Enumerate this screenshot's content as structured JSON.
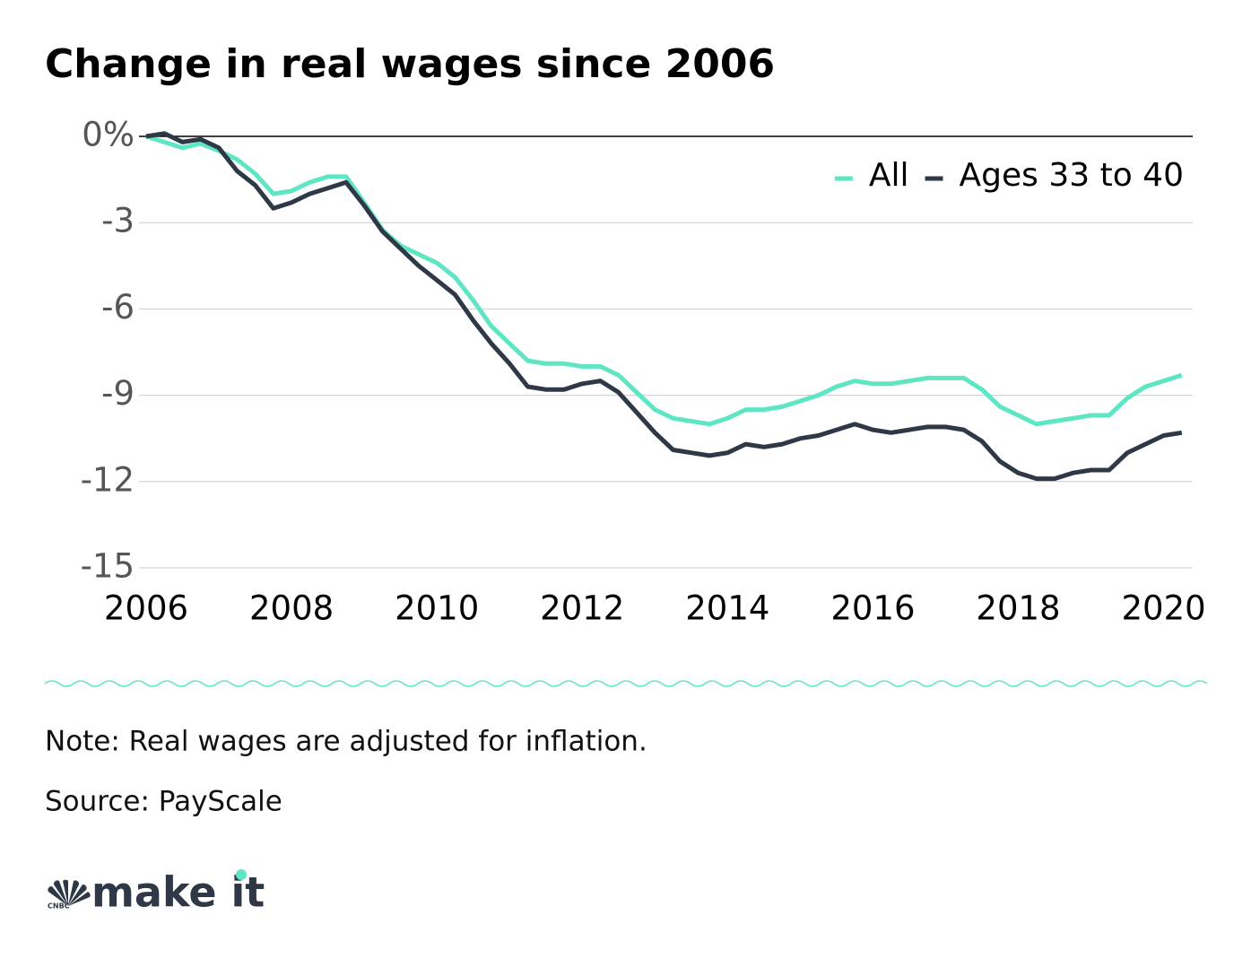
{
  "chart_data": {
    "type": "line",
    "title": "Change in real wages since 2006",
    "x": [
      2006,
      2006.25,
      2006.5,
      2006.75,
      2007,
      2007.25,
      2007.5,
      2007.75,
      2008,
      2008.25,
      2008.5,
      2008.75,
      2009,
      2009.25,
      2009.5,
      2009.75,
      2010,
      2010.25,
      2010.5,
      2010.75,
      2011,
      2011.25,
      2011.5,
      2011.75,
      2012,
      2012.25,
      2012.5,
      2012.75,
      2013,
      2013.25,
      2013.5,
      2013.75,
      2014,
      2014.25,
      2014.5,
      2014.75,
      2015,
      2015.25,
      2015.5,
      2015.75,
      2016,
      2016.25,
      2016.5,
      2016.75,
      2017,
      2017.25,
      2017.5,
      2017.75,
      2018,
      2018.25,
      2018.5,
      2018.75,
      2019,
      2019.25,
      2019.5,
      2019.75,
      2020,
      2020.25
    ],
    "series": [
      {
        "name": "All",
        "color": "#5ee6c4",
        "values": [
          0,
          -0.2,
          -0.4,
          -0.25,
          -0.5,
          -0.8,
          -1.3,
          -2.0,
          -1.9,
          -1.6,
          -1.4,
          -1.4,
          -2.3,
          -3.25,
          -3.8,
          -4.1,
          -4.4,
          -4.9,
          -5.7,
          -6.6,
          -7.2,
          -7.8,
          -7.9,
          -7.9,
          -8.0,
          -8.0,
          -8.3,
          -8.9,
          -9.5,
          -9.8,
          -9.9,
          -10.0,
          -9.8,
          -9.5,
          -9.5,
          -9.4,
          -9.2,
          -9.0,
          -8.7,
          -8.5,
          -8.6,
          -8.6,
          -8.5,
          -8.4,
          -8.4,
          -8.4,
          -8.8,
          -9.4,
          -9.7,
          -10.0,
          -9.9,
          -9.8,
          -9.7,
          -9.7,
          -9.1,
          -8.7,
          -8.5,
          -8.3
        ]
      },
      {
        "name": "Ages 33 to 40",
        "color": "#2f3846",
        "values": [
          0,
          0.1,
          -0.2,
          -0.1,
          -0.4,
          -1.2,
          -1.7,
          -2.5,
          -2.3,
          -2.0,
          -1.8,
          -1.6,
          -2.4,
          -3.3,
          -3.9,
          -4.5,
          -5.0,
          -5.5,
          -6.4,
          -7.2,
          -7.9,
          -8.7,
          -8.8,
          -8.8,
          -8.6,
          -8.5,
          -8.9,
          -9.6,
          -10.3,
          -10.9,
          -11.0,
          -11.1,
          -11.0,
          -10.7,
          -10.8,
          -10.7,
          -10.5,
          -10.4,
          -10.2,
          -10.0,
          -10.2,
          -10.3,
          -10.2,
          -10.1,
          -10.1,
          -10.2,
          -10.6,
          -11.3,
          -11.7,
          -11.9,
          -11.9,
          -11.7,
          -11.6,
          -11.6,
          -11.0,
          -10.7,
          -10.4,
          -10.3
        ]
      }
    ],
    "xlim": [
      2006,
      2020.4
    ],
    "xticks": [
      2006,
      2008,
      2010,
      2012,
      2014,
      2016,
      2018,
      2020
    ],
    "ylim": [
      -15,
      0
    ],
    "yticks": [
      {
        "value": 0,
        "label": "0%"
      },
      -3,
      -6,
      -9,
      -12,
      -15
    ],
    "grid": true,
    "legend": "upper right",
    "note": "Note: Real wages are adjusted for inflation.",
    "source": "Source: PayScale"
  },
  "brand": {
    "name": "make it",
    "network": "CNBC"
  }
}
